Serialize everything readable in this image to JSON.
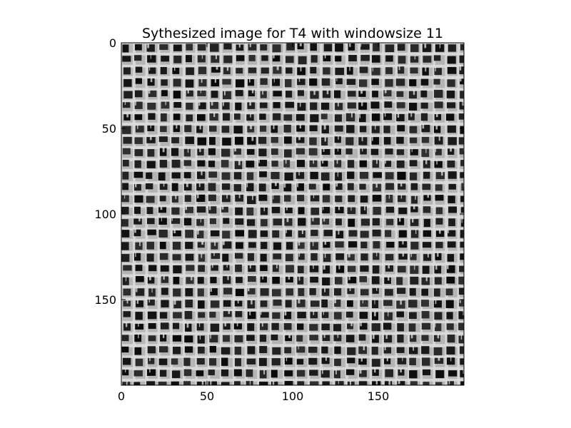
{
  "chart_data": {
    "type": "heatmap",
    "title": "Sythesized image for T4 with windowsize 11",
    "xlabel": "",
    "ylabel": "",
    "colormap": "gray",
    "image_width": 200,
    "image_height": 200,
    "xlim": [
      0,
      200
    ],
    "ylim": [
      200,
      0
    ],
    "x_ticks": [
      0,
      50,
      100,
      150
    ],
    "y_ticks": [
      0,
      50,
      100,
      150
    ],
    "x_tick_labels": [
      "0",
      "50",
      "100",
      "150"
    ],
    "y_tick_labels": [
      "0",
      "50",
      "100",
      "150"
    ],
    "grid": false,
    "texture": {
      "description_of_pattern": "woven mesh of dark square holes between light threads",
      "cell_pitch_x": 7.3,
      "cell_pitch_y": 6.8,
      "hole_color": "#161616",
      "thread_color": "#dcdcdc",
      "background_gray": "#b4b4b4"
    }
  }
}
